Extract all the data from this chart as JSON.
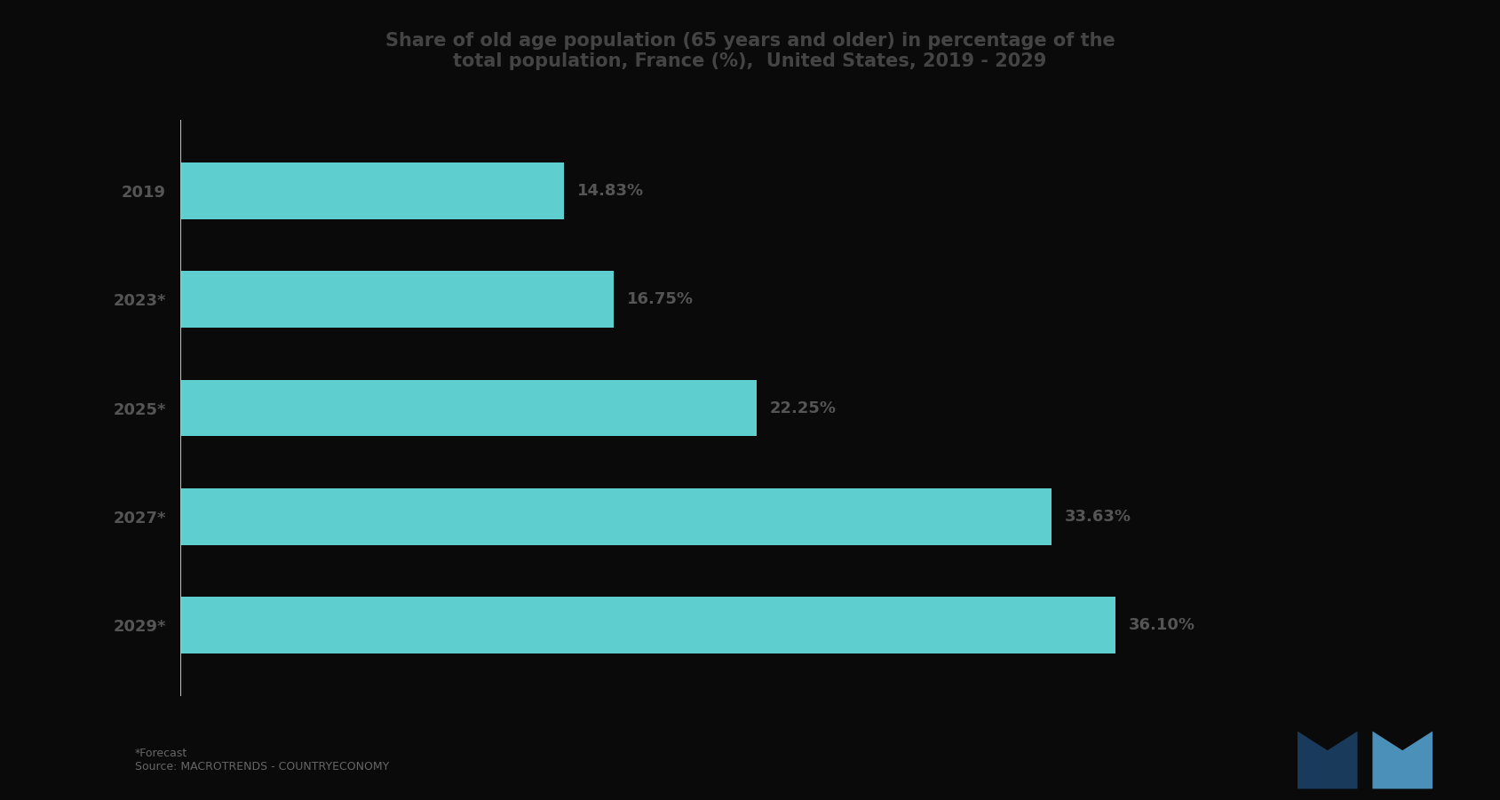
{
  "title_line1": "Share of old age population (65 years and older) in percentage of the",
  "title_line2": "total population, France (%),  United States, 2019 - 2029",
  "categories": [
    "2029*",
    "2027*",
    "2025*",
    "2023*",
    "2019"
  ],
  "values": [
    36.1,
    33.63,
    22.25,
    16.75,
    14.83
  ],
  "bar_color": "#5ecece",
  "value_labels": [
    "36.10%",
    "33.63%",
    "22.25%",
    "16.75%",
    "14.83%"
  ],
  "background_color": "#0a0a0a",
  "plot_bg_color": "#141414",
  "text_color": "#555555",
  "title_color": "#444444",
  "bar_height": 0.52,
  "vline_color": "#bbbbbb",
  "footer_text": "*Forecast\nSource: MACROTRENDS - COUNTRYECONOMY",
  "logo_color_dark": "#1a3a5c",
  "logo_color_light": "#4a90b8",
  "label_fontsize": 13,
  "ytick_fontsize": 13,
  "title_fontsize": 15
}
